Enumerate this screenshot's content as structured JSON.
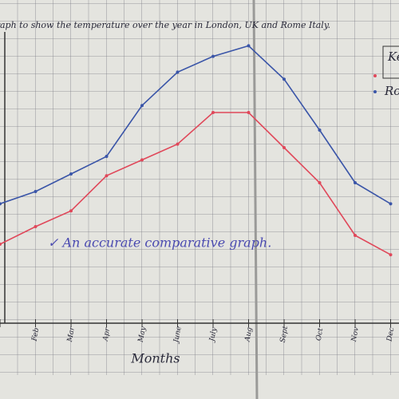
{
  "chart_data": {
    "type": "line",
    "title": "Graph to show the temperature over the year in London, UK and Rome Italy.",
    "annotation": "✓ An accurate comparative graph.",
    "x_label": "Months",
    "legend_title": "Ke",
    "categories": [
      null,
      "Feb",
      "Mar",
      "Apr",
      "May",
      "June",
      "July",
      "Aug",
      "Sept",
      "Oct",
      "Nov",
      "Dec"
    ],
    "series": [
      {
        "name": "Ro",
        "color": "#3a55a8",
        "values": [
          6.8,
          7.5,
          8.5,
          9.5,
          12.4,
          14.3,
          15.2,
          15.8,
          13.9,
          11.0,
          8.0,
          6.8
        ]
      },
      {
        "color": "#e0485a",
        "values": [
          4.5,
          5.5,
          6.4,
          8.4,
          9.3,
          10.2,
          12.0,
          12.0,
          10.0,
          8.0,
          5.0,
          3.9
        ]
      }
    ],
    "ylim": [
      0,
      18
    ]
  }
}
